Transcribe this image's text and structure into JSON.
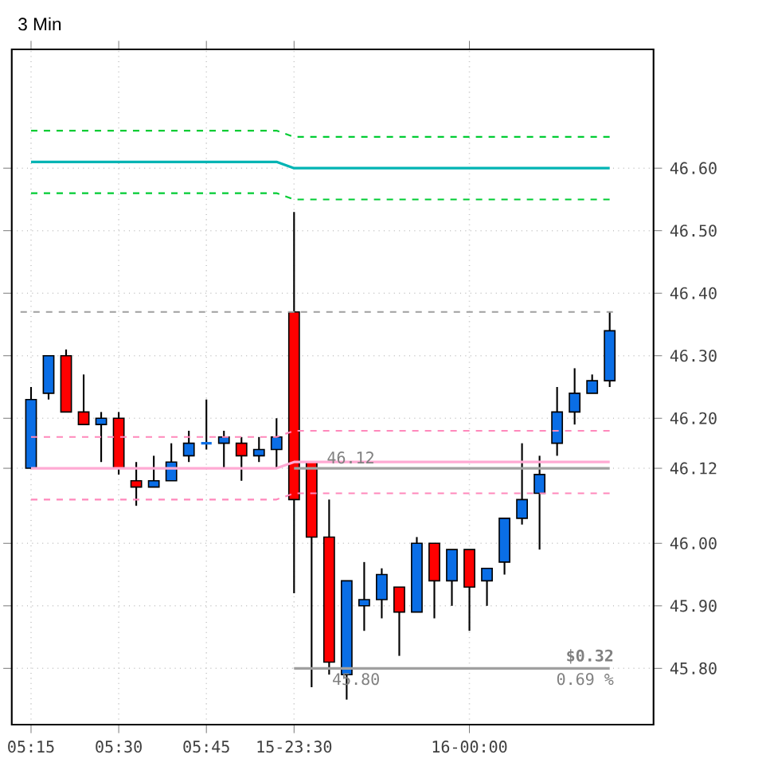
{
  "chart_data": {
    "type": "candlestick",
    "title": "3 Min",
    "categories": [
      "05:15",
      null,
      null,
      null,
      null,
      "05:30",
      null,
      null,
      null,
      null,
      "05:45",
      null,
      null,
      null,
      null,
      "15-23:30",
      null,
      null,
      null,
      null,
      null,
      null,
      null,
      null,
      null,
      "16-00:00",
      null,
      null,
      null,
      null,
      null,
      null,
      null,
      null
    ],
    "series": [
      {
        "ohlc": [
          [
            46.12,
            46.25,
            46.12,
            46.23
          ],
          [
            46.24,
            46.3,
            46.23,
            46.3
          ],
          [
            46.3,
            46.31,
            46.21,
            46.21
          ],
          [
            46.21,
            46.27,
            46.19,
            46.19
          ],
          [
            46.19,
            46.21,
            46.13,
            46.2
          ],
          [
            46.2,
            46.21,
            46.11,
            46.12
          ],
          [
            46.1,
            46.13,
            46.06,
            46.09
          ],
          [
            46.09,
            46.14,
            46.09,
            46.1
          ],
          [
            46.1,
            46.16,
            46.1,
            46.13
          ],
          [
            46.14,
            46.18,
            46.13,
            46.16
          ],
          [
            46.16,
            46.23,
            46.15,
            46.16
          ],
          [
            46.16,
            46.18,
            46.12,
            46.17
          ],
          [
            46.16,
            46.17,
            46.1,
            46.14
          ],
          [
            46.14,
            46.17,
            46.13,
            46.15
          ],
          [
            46.15,
            46.2,
            46.12,
            46.17
          ],
          [
            46.37,
            46.53,
            45.92,
            46.07
          ],
          [
            46.13,
            46.13,
            45.77,
            46.01
          ],
          [
            46.01,
            46.07,
            45.79,
            45.81
          ],
          [
            45.79,
            45.94,
            45.75,
            45.94
          ],
          [
            45.9,
            45.97,
            45.86,
            45.91
          ],
          [
            45.91,
            45.96,
            45.88,
            45.95
          ],
          [
            45.93,
            45.93,
            45.82,
            45.89
          ],
          [
            45.89,
            46.01,
            45.89,
            46.0
          ],
          [
            46.0,
            46.0,
            45.88,
            45.94
          ],
          [
            45.94,
            45.99,
            45.9,
            45.99
          ],
          [
            45.99,
            45.99,
            45.86,
            45.93
          ],
          [
            45.94,
            45.96,
            45.9,
            45.96
          ],
          [
            45.97,
            46.04,
            45.95,
            46.04
          ],
          [
            46.04,
            46.16,
            46.03,
            46.07
          ],
          [
            46.08,
            46.14,
            45.99,
            46.11
          ],
          [
            46.16,
            46.25,
            46.14,
            46.21
          ],
          [
            46.21,
            46.28,
            46.19,
            46.24
          ],
          [
            46.24,
            46.27,
            46.24,
            46.26
          ],
          [
            46.26,
            46.37,
            46.25,
            46.34
          ]
        ],
        "colors": [
          "#0a6ee6",
          "#0a6ee6",
          "#ff0000",
          "#ff0000",
          "#0a6ee6",
          "#ff0000",
          "#ff0000",
          "#0a6ee6",
          "#0a6ee6",
          "#0a6ee6",
          "#0a6ee6",
          "#0a6ee6",
          "#ff0000",
          "#0a6ee6",
          "#0a6ee6",
          "#ff0000",
          "#ff0000",
          "#ff0000",
          "#0a6ee6",
          "#0a6ee6",
          "#0a6ee6",
          "#ff0000",
          "#0a6ee6",
          "#ff0000",
          "#0a6ee6",
          "#ff0000",
          "#0a6ee6",
          "#0a6ee6",
          "#0a6ee6",
          "#0a6ee6",
          "#0a6ee6",
          "#0a6ee6",
          "#0a6ee6",
          "#0a6ee6"
        ]
      },
      {
        "type": "line",
        "color": "#00cc33",
        "line_style": "dashed",
        "values": [
          46.66,
          46.66,
          46.66,
          46.66,
          46.66,
          46.66,
          46.66,
          46.66,
          46.66,
          46.66,
          46.66,
          46.66,
          46.66,
          46.66,
          46.66,
          46.65,
          46.65,
          46.65,
          46.65,
          46.65,
          46.65,
          46.65,
          46.65,
          46.65,
          46.65,
          46.65,
          46.65,
          46.65,
          46.65,
          46.65,
          46.65,
          46.65,
          46.65,
          46.65
        ]
      },
      {
        "type": "line",
        "color": "#00b4b4",
        "line_style": "solid",
        "values": [
          46.61,
          46.61,
          46.61,
          46.61,
          46.61,
          46.61,
          46.61,
          46.61,
          46.61,
          46.61,
          46.61,
          46.61,
          46.61,
          46.61,
          46.61,
          46.6,
          46.6,
          46.6,
          46.6,
          46.6,
          46.6,
          46.6,
          46.6,
          46.6,
          46.6,
          46.6,
          46.6,
          46.6,
          46.6,
          46.6,
          46.6,
          46.6,
          46.6,
          46.6
        ]
      },
      {
        "type": "line",
        "color": "#00cc33",
        "line_style": "dashed",
        "values": [
          46.56,
          46.56,
          46.56,
          46.56,
          46.56,
          46.56,
          46.56,
          46.56,
          46.56,
          46.56,
          46.56,
          46.56,
          46.56,
          46.56,
          46.56,
          46.55,
          46.55,
          46.55,
          46.55,
          46.55,
          46.55,
          46.55,
          46.55,
          46.55,
          46.55,
          46.55,
          46.55,
          46.55,
          46.55,
          46.55,
          46.55,
          46.55,
          46.55,
          46.55
        ]
      },
      {
        "type": "line",
        "color": "#ff88bb",
        "line_style": "dashed",
        "values": [
          46.17,
          46.17,
          46.17,
          46.17,
          46.17,
          46.17,
          46.17,
          46.17,
          46.17,
          46.17,
          46.17,
          46.17,
          46.17,
          46.17,
          46.17,
          46.18,
          46.18,
          46.18,
          46.18,
          46.18,
          46.18,
          46.18,
          46.18,
          46.18,
          46.18,
          46.18,
          46.18,
          46.18,
          46.18,
          46.18,
          46.18,
          46.18,
          46.18,
          46.18
        ]
      },
      {
        "type": "line",
        "color": "#ffaad4",
        "line_style": "solid",
        "values": [
          46.12,
          46.12,
          46.12,
          46.12,
          46.12,
          46.12,
          46.12,
          46.12,
          46.12,
          46.12,
          46.12,
          46.12,
          46.12,
          46.12,
          46.12,
          46.13,
          46.13,
          46.13,
          46.13,
          46.13,
          46.13,
          46.13,
          46.13,
          46.13,
          46.13,
          46.13,
          46.13,
          46.13,
          46.13,
          46.13,
          46.13,
          46.13,
          46.13,
          46.13
        ]
      },
      {
        "type": "line",
        "color": "#ff88bb",
        "line_style": "dashed",
        "values": [
          46.07,
          46.07,
          46.07,
          46.07,
          46.07,
          46.07,
          46.07,
          46.07,
          46.07,
          46.07,
          46.07,
          46.07,
          46.07,
          46.07,
          46.07,
          46.08,
          46.08,
          46.08,
          46.08,
          46.08,
          46.08,
          46.08,
          46.08,
          46.08,
          46.08,
          46.08,
          46.08,
          46.08,
          46.08,
          46.08,
          46.08,
          46.08,
          46.08,
          46.08
        ]
      },
      {
        "type": "line",
        "color": "#a0a0a0",
        "line_style": "solid",
        "values": [
          null,
          null,
          null,
          null,
          null,
          null,
          null,
          null,
          null,
          null,
          null,
          null,
          null,
          null,
          null,
          46.12,
          46.12,
          46.12,
          46.12,
          46.12,
          46.12,
          46.12,
          46.12,
          46.12,
          46.12,
          46.12,
          46.12,
          46.12,
          46.12,
          46.12,
          46.12,
          46.12,
          46.12,
          46.12
        ]
      },
      {
        "type": "line",
        "color": "#a0a0a0",
        "line_style": "solid",
        "values": [
          null,
          null,
          null,
          null,
          null,
          null,
          null,
          null,
          null,
          null,
          null,
          null,
          null,
          null,
          null,
          45.8,
          45.8,
          45.8,
          45.8,
          45.8,
          45.8,
          45.8,
          45.8,
          45.8,
          45.8,
          45.8,
          45.8,
          45.8,
          45.8,
          45.8,
          45.8,
          45.8,
          45.8,
          45.8
        ]
      }
    ],
    "ylim": [
      45.71,
      46.79
    ],
    "yticks": [
      {
        "value": 45.8,
        "label": "45.80"
      },
      {
        "value": 45.9,
        "label": "45.90"
      },
      {
        "value": 46.0,
        "label": "46.00"
      },
      {
        "value": 46.12,
        "label": "46.12"
      },
      {
        "value": 46.2,
        "label": "46.20"
      },
      {
        "value": 46.3,
        "label": "46.30"
      },
      {
        "value": 46.4,
        "label": "46.40"
      },
      {
        "value": 46.5,
        "label": "46.50"
      },
      {
        "value": 46.6,
        "label": "46.60"
      }
    ],
    "grid": true,
    "ref_lines": [
      {
        "axis": "y",
        "value": 46.37,
        "color": "#a0a0a0",
        "line_style": "dashed"
      }
    ],
    "annotations": [
      {
        "text": "46.12",
        "y": 46.12
      },
      {
        "text": "45.80",
        "y": 45.8
      },
      {
        "text": "**$0.32**",
        "y": 45.8
      },
      {
        "text": "0.69 %",
        "y": 45.8
      }
    ]
  }
}
